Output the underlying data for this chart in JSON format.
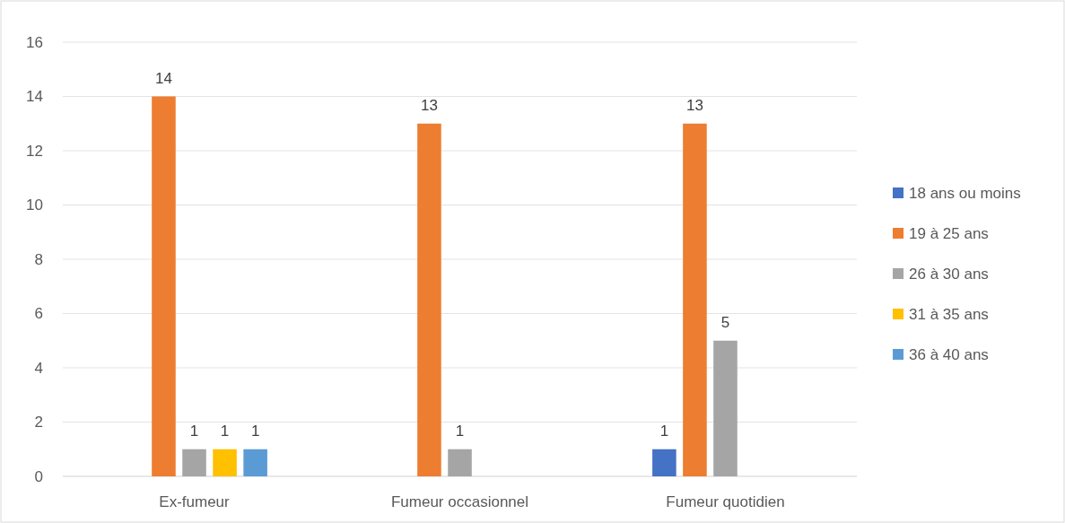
{
  "chart_data": {
    "type": "bar",
    "categories": [
      "Ex-fumeur",
      "Fumeur occasionnel",
      "Fumeur quotidien"
    ],
    "series": [
      {
        "name": "18 ans ou moins",
        "color": "#4472c4",
        "values": [
          null,
          null,
          1
        ]
      },
      {
        "name": "19 à 25 ans",
        "color": "#ed7d31",
        "values": [
          14,
          13,
          13
        ]
      },
      {
        "name": "26 à 30 ans",
        "color": "#a5a5a5",
        "values": [
          1,
          1,
          5
        ]
      },
      {
        "name": "31 à 35 ans",
        "color": "#ffc000",
        "values": [
          1,
          null,
          null
        ]
      },
      {
        "name": "36 à 40 ans",
        "color": "#5b9bd5",
        "values": [
          1,
          null,
          null
        ]
      }
    ],
    "ylim": [
      0,
      16
    ],
    "yticks": [
      0,
      2,
      4,
      6,
      8,
      10,
      12,
      14,
      16
    ],
    "grid": "y",
    "legend": "right",
    "data_labels": true
  }
}
